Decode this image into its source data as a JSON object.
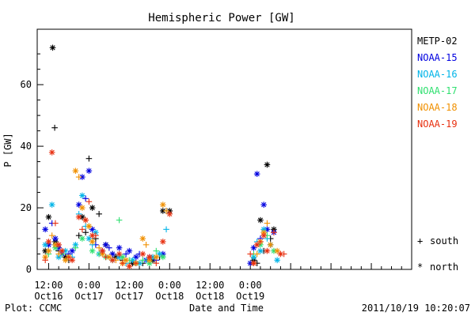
{
  "chart_data": {
    "type": "scatter",
    "title": "Hemispheric Power [GW]",
    "xlabel": "Date and Time",
    "ylabel": "P [GW]",
    "xlim_hours": [
      -3.4,
      108
    ],
    "ylim": [
      0,
      78
    ],
    "yticks": [
      0,
      20,
      40,
      60
    ],
    "xticks": [
      {
        "h": 0,
        "time": "12:00",
        "date": "Oct16"
      },
      {
        "h": 12,
        "time": "0:00",
        "date": "Oct17"
      },
      {
        "h": 24,
        "time": "12:00",
        "date": "Oct17"
      },
      {
        "h": 36,
        "time": "0:00",
        "date": "Oct18"
      },
      {
        "h": 48,
        "time": "12:00",
        "date": "Oct18"
      },
      {
        "h": 60,
        "time": "0:00",
        "date": "Oct19"
      }
    ],
    "grid": false,
    "legend_position": "right",
    "footer_left": "Plot: CCMC",
    "footer_right": "2011/10/19 10:20:07",
    "symbol_legend": [
      {
        "marker": "+",
        "label": "south"
      },
      {
        "marker": "*",
        "label": "north"
      }
    ],
    "series": [
      {
        "name": "METP-02",
        "color": "#000000",
        "points": [
          [
            -1,
            6,
            "n"
          ],
          [
            0,
            17,
            "n"
          ],
          [
            1.2,
            72,
            "n"
          ],
          [
            1.8,
            46,
            "s"
          ],
          [
            2,
            9,
            "n"
          ],
          [
            3,
            6,
            "s"
          ],
          [
            5,
            4,
            "n"
          ],
          [
            6,
            3,
            "s"
          ],
          [
            9,
            11,
            "s"
          ],
          [
            10,
            17,
            "n"
          ],
          [
            11,
            12,
            "s"
          ],
          [
            12,
            36,
            "s"
          ],
          [
            13,
            20,
            "n"
          ],
          [
            14,
            10,
            "s"
          ],
          [
            15,
            18,
            "s"
          ],
          [
            17,
            8,
            "n"
          ],
          [
            19,
            5,
            "s"
          ],
          [
            20,
            4,
            "n"
          ],
          [
            22,
            3,
            "s"
          ],
          [
            25,
            2,
            "n"
          ],
          [
            28,
            2,
            "s"
          ],
          [
            31,
            3,
            "n"
          ],
          [
            33,
            4,
            "s"
          ],
          [
            34,
            19,
            "n"
          ],
          [
            35,
            19,
            "s"
          ],
          [
            36,
            19,
            "n"
          ],
          [
            61,
            3,
            "n"
          ],
          [
            62,
            2,
            "s"
          ],
          [
            63,
            16,
            "n"
          ],
          [
            64,
            6,
            "s"
          ],
          [
            65,
            34,
            "n"
          ],
          [
            66,
            10,
            "s"
          ],
          [
            67,
            13,
            "n"
          ]
        ]
      },
      {
        "name": "NOAA-15",
        "color": "#0000e0",
        "points": [
          [
            -1,
            13,
            "n"
          ],
          [
            0,
            8,
            "n"
          ],
          [
            1,
            15,
            "s"
          ],
          [
            2,
            10,
            "n"
          ],
          [
            3,
            7,
            "n"
          ],
          [
            4,
            5,
            "n"
          ],
          [
            6,
            5,
            "s"
          ],
          [
            7,
            6,
            "n"
          ],
          [
            9,
            21,
            "n"
          ],
          [
            10,
            30,
            "n"
          ],
          [
            11,
            23,
            "s"
          ],
          [
            12,
            32,
            "n"
          ],
          [
            13,
            13,
            "n"
          ],
          [
            14,
            8,
            "s"
          ],
          [
            16,
            6,
            "n"
          ],
          [
            17,
            8,
            "n"
          ],
          [
            18,
            7,
            "s"
          ],
          [
            19,
            5,
            "n"
          ],
          [
            21,
            7,
            "n"
          ],
          [
            23,
            5,
            "s"
          ],
          [
            24,
            6,
            "n"
          ],
          [
            26,
            4,
            "n"
          ],
          [
            27,
            5,
            "s"
          ],
          [
            29,
            3,
            "n"
          ],
          [
            30,
            4,
            "n"
          ],
          [
            32,
            3,
            "s"
          ],
          [
            34,
            5,
            "n"
          ],
          [
            60,
            2,
            "n"
          ],
          [
            61,
            7,
            "n"
          ],
          [
            62,
            31,
            "n"
          ],
          [
            63,
            10,
            "s"
          ],
          [
            64,
            21,
            "n"
          ],
          [
            65,
            13,
            "n"
          ],
          [
            66,
            8,
            "s"
          ],
          [
            67,
            12,
            "n"
          ]
        ]
      },
      {
        "name": "NOAA-16",
        "color": "#00b4e8",
        "points": [
          [
            -1,
            8,
            "n"
          ],
          [
            0,
            6,
            "s"
          ],
          [
            1,
            21,
            "n"
          ],
          [
            2,
            8,
            "s"
          ],
          [
            3,
            4,
            "n"
          ],
          [
            5,
            6,
            "n"
          ],
          [
            7,
            4,
            "s"
          ],
          [
            8,
            8,
            "n"
          ],
          [
            9,
            18,
            "s"
          ],
          [
            10,
            24,
            "n"
          ],
          [
            11,
            14,
            "s"
          ],
          [
            12,
            10,
            "n"
          ],
          [
            13,
            8,
            "s"
          ],
          [
            14,
            12,
            "n"
          ],
          [
            15,
            5,
            "n"
          ],
          [
            17,
            4,
            "s"
          ],
          [
            19,
            3,
            "n"
          ],
          [
            21,
            4,
            "n"
          ],
          [
            23,
            2,
            "s"
          ],
          [
            25,
            3,
            "n"
          ],
          [
            27,
            2,
            "n"
          ],
          [
            29,
            3,
            "s"
          ],
          [
            31,
            4,
            "n"
          ],
          [
            33,
            5,
            "n"
          ],
          [
            35,
            13,
            "s"
          ],
          [
            61,
            4,
            "n"
          ],
          [
            62,
            9,
            "s"
          ],
          [
            63,
            6,
            "n"
          ],
          [
            64,
            13,
            "n"
          ],
          [
            65,
            10,
            "s"
          ],
          [
            66,
            8,
            "n"
          ],
          [
            68,
            3,
            "n"
          ]
        ]
      },
      {
        "name": "NOAA-17",
        "color": "#30e070",
        "points": [
          [
            0,
            5,
            "s"
          ],
          [
            2,
            7,
            "n"
          ],
          [
            4,
            5,
            "s"
          ],
          [
            6,
            4,
            "n"
          ],
          [
            8,
            7,
            "s"
          ],
          [
            10,
            10,
            "n"
          ],
          [
            12,
            14,
            "s"
          ],
          [
            13,
            6,
            "n"
          ],
          [
            15,
            5,
            "s"
          ],
          [
            17,
            4,
            "n"
          ],
          [
            19,
            3,
            "s"
          ],
          [
            21,
            16,
            "s"
          ],
          [
            22,
            4,
            "n"
          ],
          [
            24,
            3,
            "s"
          ],
          [
            26,
            2,
            "n"
          ],
          [
            28,
            3,
            "s"
          ],
          [
            30,
            2,
            "n"
          ],
          [
            32,
            6,
            "s"
          ],
          [
            34,
            4,
            "n"
          ],
          [
            61,
            5,
            "s"
          ],
          [
            63,
            8,
            "n"
          ],
          [
            65,
            11,
            "s"
          ],
          [
            67,
            6,
            "n"
          ]
        ]
      },
      {
        "name": "NOAA-18",
        "color": "#f09000",
        "points": [
          [
            -1,
            4,
            "n"
          ],
          [
            0,
            6,
            "n"
          ],
          [
            1,
            11,
            "s"
          ],
          [
            2,
            8,
            "n"
          ],
          [
            3,
            5,
            "s"
          ],
          [
            5,
            3,
            "n"
          ],
          [
            6,
            4,
            "n"
          ],
          [
            8,
            32,
            "n"
          ],
          [
            9,
            30,
            "s"
          ],
          [
            10,
            20,
            "n"
          ],
          [
            11,
            16,
            "s"
          ],
          [
            12,
            14,
            "n"
          ],
          [
            13,
            9,
            "n"
          ],
          [
            15,
            7,
            "s"
          ],
          [
            16,
            5,
            "n"
          ],
          [
            18,
            4,
            "n"
          ],
          [
            20,
            3,
            "s"
          ],
          [
            22,
            2,
            "n"
          ],
          [
            23,
            3,
            "n"
          ],
          [
            24,
            1,
            "s"
          ],
          [
            26,
            2,
            "n"
          ],
          [
            28,
            10,
            "n"
          ],
          [
            29,
            8,
            "s"
          ],
          [
            30,
            3,
            "n"
          ],
          [
            32,
            4,
            "n"
          ],
          [
            34,
            21,
            "n"
          ],
          [
            35,
            19,
            "s"
          ],
          [
            61,
            2,
            "n"
          ],
          [
            62,
            5,
            "s"
          ],
          [
            63,
            9,
            "n"
          ],
          [
            64,
            12,
            "n"
          ],
          [
            65,
            15,
            "s"
          ],
          [
            66,
            8,
            "n"
          ],
          [
            68,
            6,
            "n"
          ]
        ]
      },
      {
        "name": "NOAA-19",
        "color": "#e83010",
        "points": [
          [
            -1,
            3,
            "s"
          ],
          [
            0,
            9,
            "n"
          ],
          [
            1,
            38,
            "n"
          ],
          [
            2,
            15,
            "s"
          ],
          [
            3,
            8,
            "n"
          ],
          [
            4,
            6,
            "n"
          ],
          [
            6,
            4,
            "s"
          ],
          [
            7,
            3,
            "n"
          ],
          [
            9,
            17,
            "n"
          ],
          [
            10,
            13,
            "s"
          ],
          [
            11,
            16,
            "n"
          ],
          [
            12,
            22,
            "s"
          ],
          [
            13,
            11,
            "n"
          ],
          [
            14,
            11,
            "s"
          ],
          [
            16,
            6,
            "n"
          ],
          [
            17,
            4,
            "s"
          ],
          [
            19,
            3,
            "n"
          ],
          [
            21,
            5,
            "n"
          ],
          [
            22,
            2,
            "s"
          ],
          [
            24,
            1,
            "n"
          ],
          [
            26,
            2,
            "s"
          ],
          [
            28,
            5,
            "n"
          ],
          [
            30,
            4,
            "n"
          ],
          [
            32,
            2,
            "s"
          ],
          [
            34,
            9,
            "n"
          ],
          [
            36,
            18,
            "n"
          ],
          [
            60,
            5,
            "s"
          ],
          [
            61,
            2,
            "n"
          ],
          [
            62,
            8,
            "n"
          ],
          [
            63,
            9,
            "s"
          ],
          [
            64,
            11,
            "n"
          ],
          [
            65,
            6,
            "n"
          ],
          [
            67,
            12,
            "s"
          ],
          [
            69,
            5,
            "n"
          ],
          [
            70,
            5,
            "s"
          ]
        ]
      }
    ]
  }
}
